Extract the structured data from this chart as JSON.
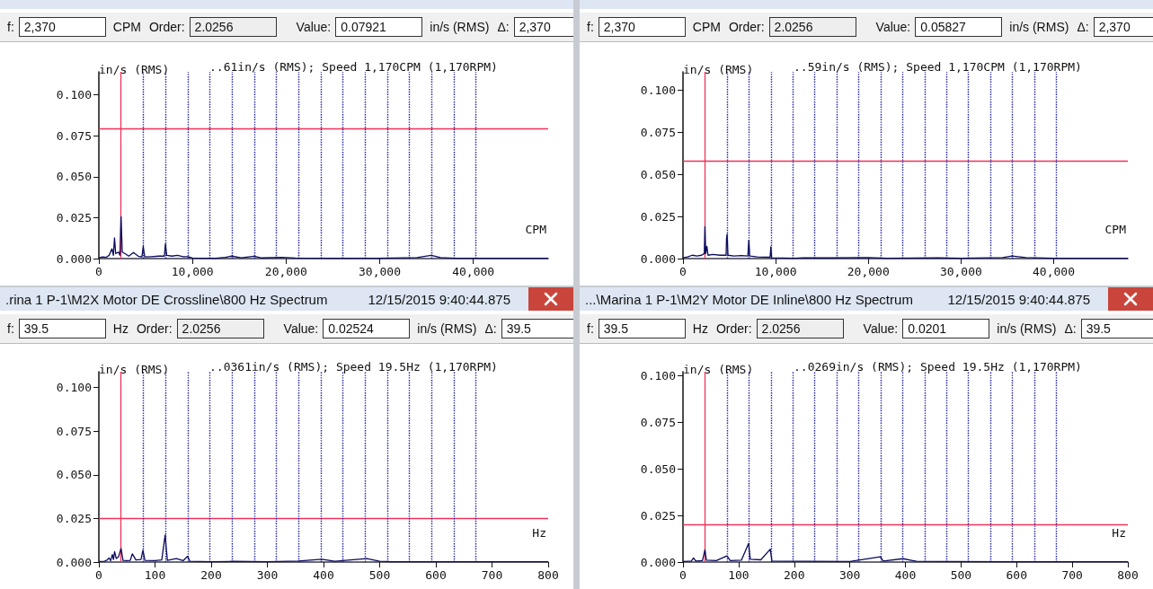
{
  "chart_data": [
    {
      "type": "line",
      "ylabel": "in/s (RMS)",
      "subtitle": "..61in/s (RMS); Speed 1,170CPM (1,170RPM)",
      "xlabel": "CPM",
      "annotations": [
        "f:",
        "2,370",
        "CPM",
        "Order:",
        "2.0256",
        "Value:",
        "0.07921",
        "in/s (RMS)",
        "Δ:",
        "2,370"
      ],
      "xlim": [
        0,
        48000
      ],
      "xticks": [
        0,
        {
          "value": 10000,
          "label": "10,000"
        },
        {
          "value": 20000,
          "label": "20,000"
        },
        {
          "value": 30000,
          "label": "30,000"
        },
        {
          "value": 40000,
          "label": "40,000"
        }
      ],
      "ylim": [
        0,
        0.114
      ],
      "yticks": [
        {
          "value": 0,
          "label": "0.000"
        },
        {
          "value": 0.025,
          "label": "0.025"
        },
        {
          "value": 0.05,
          "label": "0.050"
        },
        {
          "value": 0.075,
          "label": "0.075"
        },
        {
          "value": 0.1,
          "label": "0.100"
        }
      ],
      "grid": false,
      "marker": "none",
      "series": [
        {
          "color": "#0a0a5c",
          "x": [
            0,
            400,
            800,
            1100,
            1400,
            1550,
            1675,
            1800,
            2100,
            2250,
            2370,
            2500,
            2800,
            3200,
            3700,
            4200,
            4600,
            4740,
            4900,
            5600,
            6400,
            7000,
            7110,
            7250,
            7800,
            8400,
            9000,
            9500,
            10000,
            12500,
            13500,
            14220,
            15200,
            16600,
            17400,
            19500,
            21000,
            25000,
            30000,
            34000,
            35500,
            36500,
            38000,
            43000,
            48000
          ],
          "values": [
            0.0005,
            0.001,
            0.0008,
            0.002,
            0.006,
            0.002,
            0.0126,
            0.003,
            0.004,
            0.002,
            0.0255,
            0.004,
            0.003,
            0.0015,
            0.0037,
            0.0015,
            0.001,
            0.0074,
            0.001,
            0.0012,
            0.0015,
            0.0015,
            0.0089,
            0.002,
            0.0015,
            0.002,
            0.0012,
            0.0012,
            0.0003,
            0.0002,
            0.0008,
            0.0015,
            0.0005,
            0.0014,
            0.0004,
            0.0008,
            0.0003,
            0.0002,
            0.0002,
            0.0006,
            0.002,
            0.0006,
            0.0002,
            0.0002,
            0.0002
          ]
        }
      ],
      "ref_lines": [
        {
          "axis": "x",
          "value": 2370,
          "label": null,
          "color": "#f0325a",
          "line_style": "solid"
        },
        {
          "axis": "y",
          "value": 0.07921,
          "label": null,
          "color": "#f0325a",
          "line_style": "solid"
        },
        {
          "axis": "x",
          "value": 4740,
          "label": null,
          "color": "#1c1ca0",
          "line_style": "dotted"
        },
        {
          "axis": "x",
          "value": 7110,
          "label": null,
          "color": "#1c1ca0",
          "line_style": "dotted"
        },
        {
          "axis": "x",
          "value": 9480,
          "label": null,
          "color": "#1c1ca0",
          "line_style": "dotted"
        },
        {
          "axis": "x",
          "value": 11850,
          "label": null,
          "color": "#1c1ca0",
          "line_style": "dotted"
        },
        {
          "axis": "x",
          "value": 14220,
          "label": null,
          "color": "#1c1ca0",
          "line_style": "dotted"
        },
        {
          "axis": "x",
          "value": 16590,
          "label": null,
          "color": "#1c1ca0",
          "line_style": "dotted"
        },
        {
          "axis": "x",
          "value": 18960,
          "label": null,
          "color": "#1c1ca0",
          "line_style": "dotted"
        },
        {
          "axis": "x",
          "value": 21330,
          "label": null,
          "color": "#1c1ca0",
          "line_style": "dotted"
        },
        {
          "axis": "x",
          "value": 23700,
          "label": null,
          "color": "#1c1ca0",
          "line_style": "dotted"
        },
        {
          "axis": "x",
          "value": 26070,
          "label": null,
          "color": "#1c1ca0",
          "line_style": "dotted"
        },
        {
          "axis": "x",
          "value": 28440,
          "label": null,
          "color": "#1c1ca0",
          "line_style": "dotted"
        },
        {
          "axis": "x",
          "value": 30810,
          "label": null,
          "color": "#1c1ca0",
          "line_style": "dotted"
        },
        {
          "axis": "x",
          "value": 33180,
          "label": null,
          "color": "#1c1ca0",
          "line_style": "dotted"
        },
        {
          "axis": "x",
          "value": 35550,
          "label": null,
          "color": "#1c1ca0",
          "line_style": "dotted"
        },
        {
          "axis": "x",
          "value": 37920,
          "label": null,
          "color": "#1c1ca0",
          "line_style": "dotted"
        },
        {
          "axis": "x",
          "value": 40290,
          "label": null,
          "color": "#1c1ca0",
          "line_style": "dotted"
        }
      ]
    },
    {
      "type": "line",
      "ylabel": "in/s (RMS)",
      "subtitle": "..59in/s (RMS); Speed 1,170CPM (1,170RPM)",
      "xlabel": "CPM",
      "annotations": [
        "f:",
        "2,370",
        "CPM",
        "Order:",
        "2.0256",
        "Value:",
        "0.05827",
        "in/s (RMS)",
        "Δ:",
        "2,370"
      ],
      "xlim": [
        0,
        48000
      ],
      "xticks": [
        0,
        {
          "value": 10000,
          "label": "10,000"
        },
        {
          "value": 20000,
          "label": "20,000"
        },
        {
          "value": 30000,
          "label": "30,000"
        },
        {
          "value": 40000,
          "label": "40,000"
        }
      ],
      "ylim": [
        0,
        0.111
      ],
      "yticks": [
        {
          "value": 0,
          "label": "0.000"
        },
        {
          "value": 0.025,
          "label": "0.025"
        },
        {
          "value": 0.05,
          "label": "0.050"
        },
        {
          "value": 0.075,
          "label": "0.075"
        },
        {
          "value": 0.1,
          "label": "0.100"
        }
      ],
      "grid": false,
      "marker": "none",
      "series": [
        {
          "color": "#0a0a5c",
          "x": [
            0,
            500,
            1000,
            1500,
            2000,
            2300,
            2370,
            2450,
            2580,
            2700,
            3200,
            4000,
            4650,
            4700,
            4760,
            4850,
            5500,
            6300,
            7000,
            7100,
            7200,
            8000,
            9400,
            9480,
            9560,
            12000,
            13000,
            16000,
            20000,
            22000,
            27500,
            30000,
            34500,
            35500,
            37000,
            40000,
            48000
          ],
          "values": [
            0.0005,
            0.001,
            0.002,
            0.0015,
            0.002,
            0.003,
            0.019,
            0.003,
            0.0073,
            0.002,
            0.0025,
            0.002,
            0.002,
            0.012,
            0.0145,
            0.002,
            0.0015,
            0.0018,
            0.0015,
            0.0109,
            0.0015,
            0.001,
            0.0008,
            0.007,
            0.0005,
            0.0002,
            0.0005,
            0.0004,
            0.0006,
            0.0002,
            0.0004,
            0.0002,
            0.0006,
            0.0015,
            0.0006,
            0.0002,
            0.0002
          ]
        }
      ],
      "ref_lines": [
        {
          "axis": "x",
          "value": 2370,
          "label": null,
          "color": "#f0325a",
          "line_style": "solid"
        },
        {
          "axis": "y",
          "value": 0.05827,
          "label": null,
          "color": "#f0325a",
          "line_style": "solid"
        },
        {
          "axis": "x",
          "value": 4740,
          "label": null,
          "color": "#1c1ca0",
          "line_style": "dotted"
        },
        {
          "axis": "x",
          "value": 7110,
          "label": null,
          "color": "#1c1ca0",
          "line_style": "dotted"
        },
        {
          "axis": "x",
          "value": 9480,
          "label": null,
          "color": "#1c1ca0",
          "line_style": "dotted"
        },
        {
          "axis": "x",
          "value": 11850,
          "label": null,
          "color": "#1c1ca0",
          "line_style": "dotted"
        },
        {
          "axis": "x",
          "value": 14220,
          "label": null,
          "color": "#1c1ca0",
          "line_style": "dotted"
        },
        {
          "axis": "x",
          "value": 16590,
          "label": null,
          "color": "#1c1ca0",
          "line_style": "dotted"
        },
        {
          "axis": "x",
          "value": 18960,
          "label": null,
          "color": "#1c1ca0",
          "line_style": "dotted"
        },
        {
          "axis": "x",
          "value": 21330,
          "label": null,
          "color": "#1c1ca0",
          "line_style": "dotted"
        },
        {
          "axis": "x",
          "value": 23700,
          "label": null,
          "color": "#1c1ca0",
          "line_style": "dotted"
        },
        {
          "axis": "x",
          "value": 26070,
          "label": null,
          "color": "#1c1ca0",
          "line_style": "dotted"
        },
        {
          "axis": "x",
          "value": 28440,
          "label": null,
          "color": "#1c1ca0",
          "line_style": "dotted"
        },
        {
          "axis": "x",
          "value": 30810,
          "label": null,
          "color": "#1c1ca0",
          "line_style": "dotted"
        },
        {
          "axis": "x",
          "value": 33180,
          "label": null,
          "color": "#1c1ca0",
          "line_style": "dotted"
        },
        {
          "axis": "x",
          "value": 35550,
          "label": null,
          "color": "#1c1ca0",
          "line_style": "dotted"
        },
        {
          "axis": "x",
          "value": 37920,
          "label": null,
          "color": "#1c1ca0",
          "line_style": "dotted"
        },
        {
          "axis": "x",
          "value": 40290,
          "label": null,
          "color": "#1c1ca0",
          "line_style": "dotted"
        }
      ]
    },
    {
      "type": "line",
      "title": ".rina 1 P-1\\M2X Motor DE Crossline\\800 Hz Spectrum",
      "ylabel": "in/s (RMS)",
      "subtitle": "..0361in/s (RMS); Speed 19.5Hz (1,170RPM)",
      "xlabel": "Hz",
      "annotations": [
        "f:",
        "39.5",
        "Hz",
        "Order:",
        "2.0256",
        "Value:",
        "0.02524",
        "in/s (RMS)",
        "Δ:",
        "39.5",
        "12/15/2015 9:40:44.875"
      ],
      "xlim": [
        0,
        800
      ],
      "xticks": [
        0,
        100,
        200,
        300,
        400,
        500,
        600,
        700,
        800
      ],
      "ylim": [
        0,
        0.109
      ],
      "yticks": [
        {
          "value": 0,
          "label": "0.000"
        },
        {
          "value": 0.025,
          "label": "0.025"
        },
        {
          "value": 0.05,
          "label": "0.050"
        },
        {
          "value": 0.075,
          "label": "0.075"
        },
        {
          "value": 0.1,
          "label": "0.100"
        }
      ],
      "grid": false,
      "marker": "none",
      "series": [
        {
          "color": "#0a0a5c",
          "x": [
            0,
            10,
            15,
            18,
            21,
            24,
            26,
            28,
            31,
            35,
            39.5,
            43,
            50,
            56,
            59.5,
            62,
            66,
            75,
            78.5,
            82,
            100,
            112,
            118,
            119.5,
            122,
            138,
            150,
            158,
            162,
            200,
            240,
            300,
            355,
            397,
            420,
            477,
            500,
            520,
            800
          ],
          "values": [
            0.0003,
            0.0005,
            0.0012,
            0.0024,
            0.0008,
            0.0043,
            0.0015,
            0.006,
            0.002,
            0.003,
            0.0078,
            0.001,
            0.0008,
            0.001,
            0.0047,
            0.0034,
            0.0012,
            0.0015,
            0.0067,
            0.001,
            0.0008,
            0.0012,
            0.0155,
            0.0098,
            0.001,
            0.002,
            0.0008,
            0.0033,
            0.0005,
            0.0002,
            0.0004,
            0.0002,
            0.0006,
            0.0016,
            0.0005,
            0.002,
            0.0005,
            0.0002,
            0.0002
          ]
        }
      ],
      "ref_lines": [
        {
          "axis": "x",
          "value": 39.5,
          "label": null,
          "color": "#f0325a",
          "line_style": "solid"
        },
        {
          "axis": "y",
          "value": 0.02524,
          "label": null,
          "color": "#f0325a",
          "line_style": "solid"
        },
        {
          "axis": "x",
          "value": 79,
          "label": null,
          "color": "#1c1ca0",
          "line_style": "dotted"
        },
        {
          "axis": "x",
          "value": 118.5,
          "label": null,
          "color": "#1c1ca0",
          "line_style": "dotted"
        },
        {
          "axis": "x",
          "value": 158,
          "label": null,
          "color": "#1c1ca0",
          "line_style": "dotted"
        },
        {
          "axis": "x",
          "value": 197.5,
          "label": null,
          "color": "#1c1ca0",
          "line_style": "dotted"
        },
        {
          "axis": "x",
          "value": 237,
          "label": null,
          "color": "#1c1ca0",
          "line_style": "dotted"
        },
        {
          "axis": "x",
          "value": 276.5,
          "label": null,
          "color": "#1c1ca0",
          "line_style": "dotted"
        },
        {
          "axis": "x",
          "value": 316,
          "label": null,
          "color": "#1c1ca0",
          "line_style": "dotted"
        },
        {
          "axis": "x",
          "value": 355.5,
          "label": null,
          "color": "#1c1ca0",
          "line_style": "dotted"
        },
        {
          "axis": "x",
          "value": 395,
          "label": null,
          "color": "#1c1ca0",
          "line_style": "dotted"
        },
        {
          "axis": "x",
          "value": 434.5,
          "label": null,
          "color": "#1c1ca0",
          "line_style": "dotted"
        },
        {
          "axis": "x",
          "value": 474,
          "label": null,
          "color": "#1c1ca0",
          "line_style": "dotted"
        },
        {
          "axis": "x",
          "value": 513.5,
          "label": null,
          "color": "#1c1ca0",
          "line_style": "dotted"
        },
        {
          "axis": "x",
          "value": 553,
          "label": null,
          "color": "#1c1ca0",
          "line_style": "dotted"
        },
        {
          "axis": "x",
          "value": 592.5,
          "label": null,
          "color": "#1c1ca0",
          "line_style": "dotted"
        },
        {
          "axis": "x",
          "value": 632,
          "label": null,
          "color": "#1c1ca0",
          "line_style": "dotted"
        },
        {
          "axis": "x",
          "value": 671.5,
          "label": null,
          "color": "#1c1ca0",
          "line_style": "dotted"
        }
      ]
    },
    {
      "type": "line",
      "title": "...\\Marina 1 P-1\\M2Y Motor DE Inline\\800 Hz Spectrum",
      "ylabel": "in/s (RMS)",
      "subtitle": "..0269in/s (RMS); Speed 19.5Hz (1,170RPM)",
      "xlabel": "Hz",
      "annotations": [
        "f:",
        "39.5",
        "Hz",
        "Order:",
        "2.0256",
        "Value:",
        "0.0201",
        "in/s (RMS)",
        "Δ:",
        "39.5",
        "12/15/2015 9:40:44.875"
      ],
      "xlim": [
        0,
        800
      ],
      "xticks": [
        0,
        100,
        200,
        300,
        400,
        500,
        600,
        700,
        800
      ],
      "ylim": [
        0,
        0.102
      ],
      "yticks": [
        {
          "value": 0,
          "label": "0.000"
        },
        {
          "value": 0.025,
          "label": "0.025"
        },
        {
          "value": 0.05,
          "label": "0.050"
        },
        {
          "value": 0.075,
          "label": "0.075"
        },
        {
          "value": 0.1,
          "label": "0.100"
        }
      ],
      "grid": false,
      "marker": "none",
      "series": [
        {
          "color": "#0a0a5c",
          "x": [
            0,
            15,
            19,
            23,
            35,
            39.5,
            42,
            60,
            79,
            85,
            105,
            118,
            121,
            140,
            157,
            160,
            220,
            300,
            355,
            360,
            396,
            420,
            470,
            600,
            800
          ],
          "values": [
            0.0003,
            0.0005,
            0.0022,
            0.0005,
            0.0008,
            0.0065,
            0.001,
            0.0008,
            0.0033,
            0.0008,
            0.001,
            0.01,
            0.0015,
            0.0012,
            0.0069,
            0.0005,
            0.0004,
            0.0003,
            0.0028,
            0.0005,
            0.0018,
            0.0004,
            0.0003,
            0.0002,
            0.0002
          ]
        }
      ],
      "ref_lines": [
        {
          "axis": "x",
          "value": 39.5,
          "label": null,
          "color": "#f0325a",
          "line_style": "solid"
        },
        {
          "axis": "y",
          "value": 0.0201,
          "label": null,
          "color": "#f0325a",
          "line_style": "solid"
        },
        {
          "axis": "x",
          "value": 79,
          "label": null,
          "color": "#1c1ca0",
          "line_style": "dotted"
        },
        {
          "axis": "x",
          "value": 118.5,
          "label": null,
          "color": "#1c1ca0",
          "line_style": "dotted"
        },
        {
          "axis": "x",
          "value": 158,
          "label": null,
          "color": "#1c1ca0",
          "line_style": "dotted"
        },
        {
          "axis": "x",
          "value": 197.5,
          "label": null,
          "color": "#1c1ca0",
          "line_style": "dotted"
        },
        {
          "axis": "x",
          "value": 237,
          "label": null,
          "color": "#1c1ca0",
          "line_style": "dotted"
        },
        {
          "axis": "x",
          "value": 276.5,
          "label": null,
          "color": "#1c1ca0",
          "line_style": "dotted"
        },
        {
          "axis": "x",
          "value": 316,
          "label": null,
          "color": "#1c1ca0",
          "line_style": "dotted"
        },
        {
          "axis": "x",
          "value": 355.5,
          "label": null,
          "color": "#1c1ca0",
          "line_style": "dotted"
        },
        {
          "axis": "x",
          "value": 395,
          "label": null,
          "color": "#1c1ca0",
          "line_style": "dotted"
        },
        {
          "axis": "x",
          "value": 434.5,
          "label": null,
          "color": "#1c1ca0",
          "line_style": "dotted"
        },
        {
          "axis": "x",
          "value": 474,
          "label": null,
          "color": "#1c1ca0",
          "line_style": "dotted"
        },
        {
          "axis": "x",
          "value": 513.5,
          "label": null,
          "color": "#1c1ca0",
          "line_style": "dotted"
        },
        {
          "axis": "x",
          "value": 553,
          "label": null,
          "color": "#1c1ca0",
          "line_style": "dotted"
        },
        {
          "axis": "x",
          "value": 592.5,
          "label": null,
          "color": "#1c1ca0",
          "line_style": "dotted"
        },
        {
          "axis": "x",
          "value": 632,
          "label": null,
          "color": "#1c1ca0",
          "line_style": "dotted"
        },
        {
          "axis": "x",
          "value": 671.5,
          "label": null,
          "color": "#1c1ca0",
          "line_style": "dotted"
        }
      ]
    }
  ]
}
